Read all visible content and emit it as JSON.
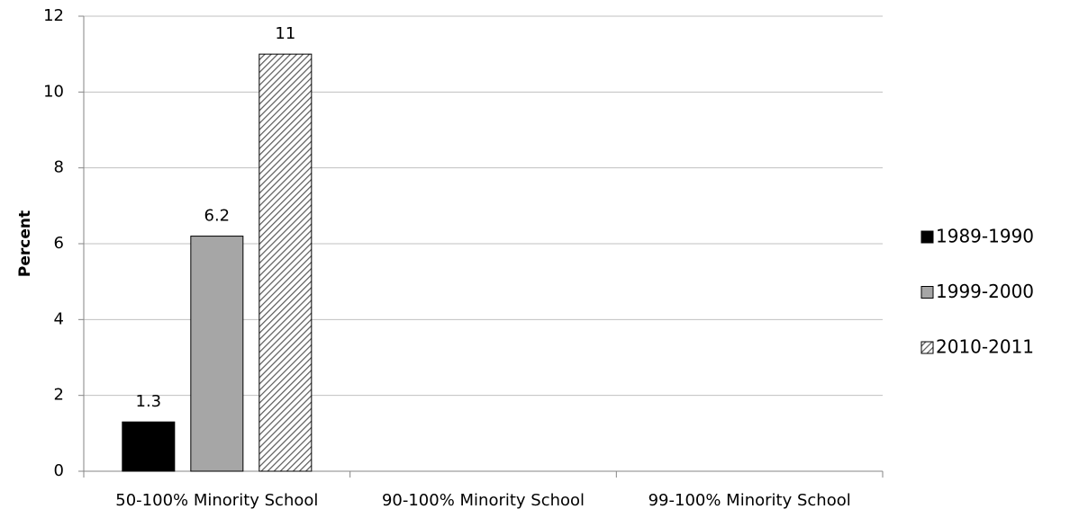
{
  "chart_data": {
    "type": "bar",
    "y_label": "Percent",
    "categories": [
      "50-100% Minority School",
      "90-100% Minority School",
      "99-100% Minority School"
    ],
    "series": [
      {
        "name": "1989-1990",
        "color": "#000000",
        "values": [
          1.3,
          null,
          null
        ]
      },
      {
        "name": "1999-2000",
        "color": "#a6a6a6",
        "values": [
          6.2,
          null,
          null
        ]
      },
      {
        "name": "2010-2011",
        "color": "#595959",
        "pattern": "diagonal",
        "values": [
          11,
          null,
          null
        ]
      }
    ],
    "ylim": [
      0,
      12
    ],
    "yticks": [
      0,
      2,
      4,
      6,
      8,
      10,
      12
    ],
    "grid": true,
    "legend": "right"
  }
}
